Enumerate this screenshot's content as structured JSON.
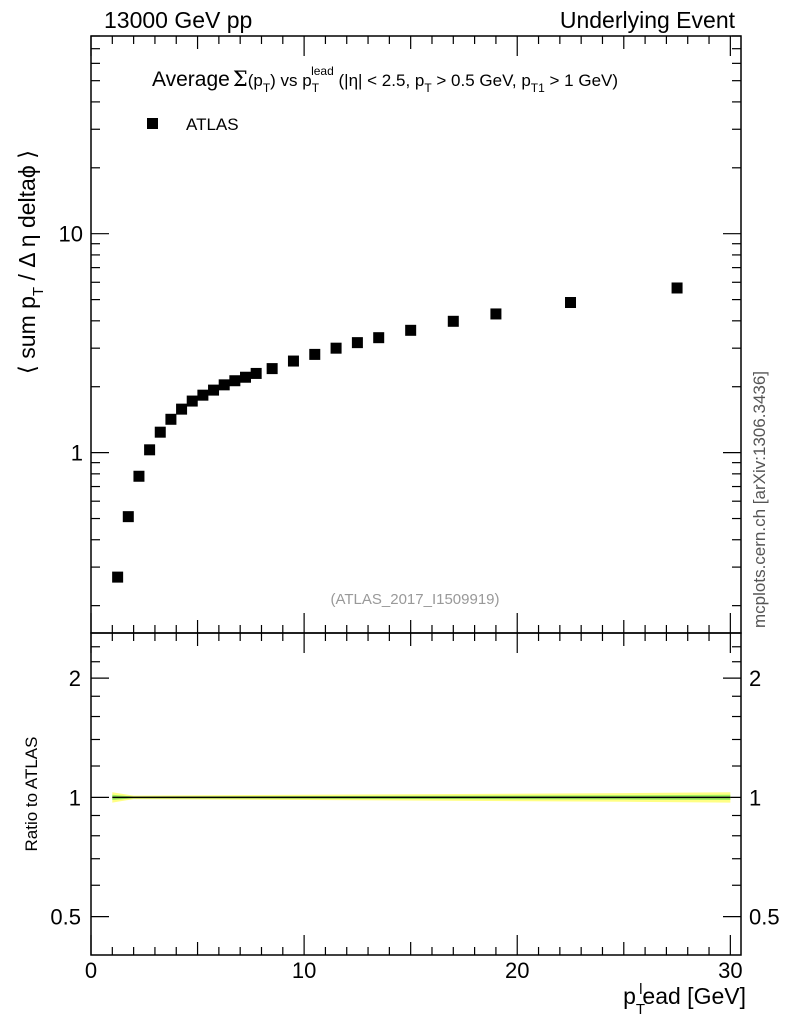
{
  "header": {
    "left": "13000 GeV pp",
    "right": "Underlying Event"
  },
  "side_label": "mcplots.cern.ch [arXiv:1306.3436]",
  "title": {
    "t1": "Average",
    "sigma": "Σ",
    "t2": "(p",
    "sub1": "T",
    "t3": ") vs p",
    "sub2": "T",
    "sup2": "lead",
    "t4": " (|η| < 2.5, p",
    "sub3": "T",
    "t5": " > 0.5 GeV, p",
    "sub4": "T1",
    "t6": " > 1 GeV)"
  },
  "ylabel": {
    "a": "⟨ sum p",
    "sub": "T",
    "b": " / Δ η deltaϕ ⟩"
  },
  "ratio_ylabel": "Ratio to ATLAS",
  "xlabel": {
    "a": "p",
    "sub": "T",
    "sup": "l",
    "b": "ead [GeV]"
  },
  "watermark": "(ATLAS_2017_I1509919)",
  "legend": {
    "label": "ATLAS",
    "position": "top-left"
  },
  "colors": {
    "data": "#000000",
    "band_outer": "#ffff77",
    "band_inner": "#88ee55",
    "watermark": "#999999"
  },
  "chart_data": [
    {
      "type": "scatter",
      "title": "Average Σ(pT) vs pT^lead (|η| < 2.5, pT > 0.5 GeV, pT1 > 1 GeV)",
      "xlabel": "pT^lead [GeV]",
      "ylabel": "⟨ sum pT / Δ η deltaϕ ⟩",
      "xlim": [
        0,
        30.5
      ],
      "ylim": [
        0.15,
        80
      ],
      "yscale": "log",
      "yticks": [
        1,
        10
      ],
      "yticklabels": [
        "1",
        "10"
      ],
      "series": [
        {
          "name": "ATLAS",
          "x": [
            1.25,
            1.75,
            2.25,
            2.75,
            3.25,
            3.75,
            4.25,
            4.75,
            5.25,
            5.75,
            6.25,
            6.75,
            7.25,
            7.75,
            8.5,
            9.5,
            10.5,
            11.5,
            12.5,
            13.5,
            15,
            17,
            19,
            22.5,
            27.5
          ],
          "y": [
            0.27,
            0.51,
            0.78,
            1.03,
            1.24,
            1.42,
            1.58,
            1.72,
            1.83,
            1.93,
            2.04,
            2.13,
            2.21,
            2.3,
            2.42,
            2.62,
            2.81,
            3.0,
            3.18,
            3.35,
            3.62,
            3.98,
            4.3,
            4.85,
            5.65
          ]
        }
      ]
    },
    {
      "type": "line",
      "xlabel": "pT^lead [GeV]",
      "ylabel": "Ratio to ATLAS",
      "xlim": [
        0,
        30.5
      ],
      "xticks": [
        0,
        10,
        20,
        30
      ],
      "xticklabels": [
        "0",
        "10",
        "20",
        "30"
      ],
      "ylim": [
        0.4,
        2.6
      ],
      "yscale": "log",
      "yticks": [
        0.5,
        1,
        2
      ],
      "yticklabels": [
        "0.5",
        "1",
        "2"
      ],
      "series": [
        {
          "x": [
            1,
            30
          ],
          "y": [
            1,
            1
          ]
        }
      ],
      "band": {
        "x": [
          1,
          2,
          25,
          30
        ],
        "lo": [
          0.97,
          0.99,
          0.975,
          0.97
        ],
        "hi": [
          1.03,
          1.01,
          1.025,
          1.03
        ]
      }
    }
  ]
}
